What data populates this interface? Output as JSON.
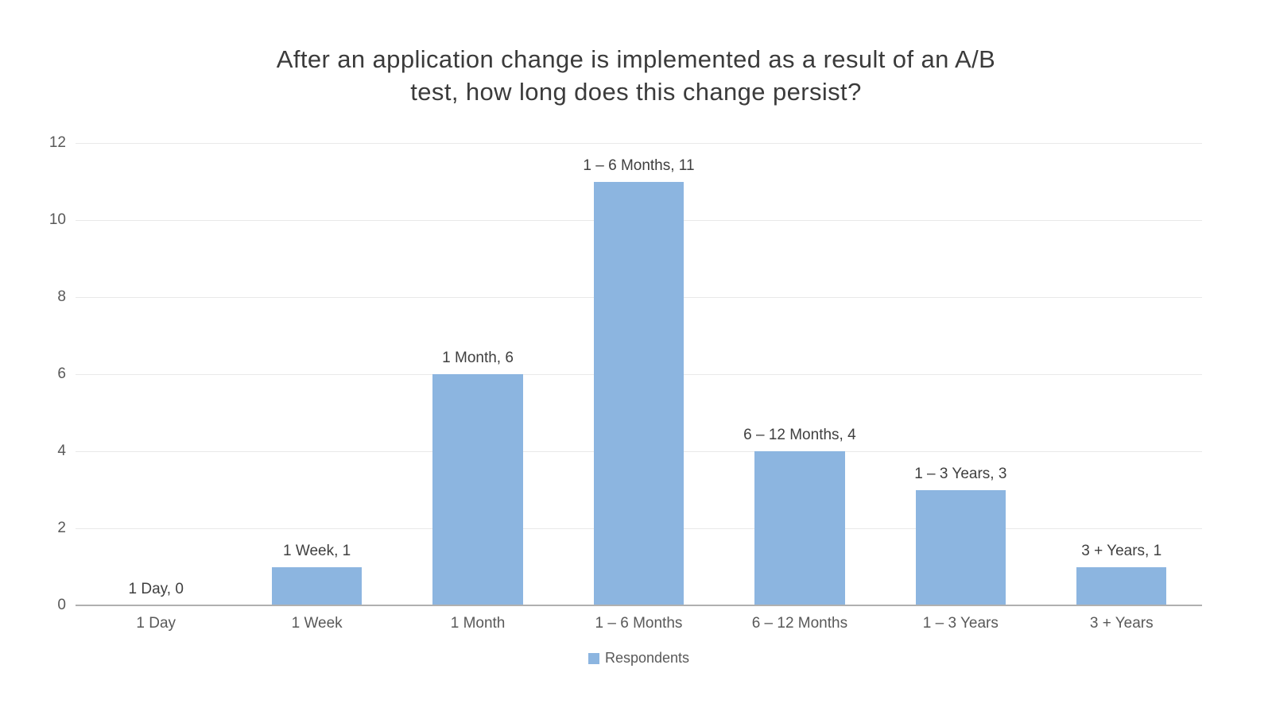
{
  "chart_data": {
    "type": "bar",
    "title": "After an application change is implemented as a result of an A/B test, how long does this change persist?",
    "title_lines": [
      "After an application change is implemented as a result of an A/B",
      "test, how long does this change persist?"
    ],
    "categories": [
      "1 Day",
      "1 Week",
      "1 Month",
      "1 – 6 Months",
      "6 – 12 Months",
      "1 – 3 Years",
      "3 + Years"
    ],
    "series": [
      {
        "name": "Respondents",
        "values": [
          0,
          1,
          6,
          11,
          4,
          3,
          1
        ]
      }
    ],
    "data_labels": [
      "1 Day, 0",
      "1 Week, 1",
      "1 Month, 6",
      "1 – 6 Months, 11",
      "6 – 12 Months, 4",
      "1 – 3 Years, 3",
      "3 + Years, 1"
    ],
    "xlabel": "",
    "ylabel": "",
    "y_ticks": [
      0,
      2,
      4,
      6,
      8,
      10,
      12
    ],
    "ylim": [
      0,
      12
    ],
    "grid": "horizontal",
    "legend": {
      "position": "bottom",
      "entries": [
        "Respondents"
      ]
    },
    "colors": {
      "bar_fill": "#8cb5e0",
      "axis_line": "#b0b0b0",
      "gridline": "#e9e9e9",
      "tick_text": "#595959",
      "label_text": "#3f3f3f",
      "title_text": "#3b3b3b",
      "background": "#ffffff"
    }
  }
}
